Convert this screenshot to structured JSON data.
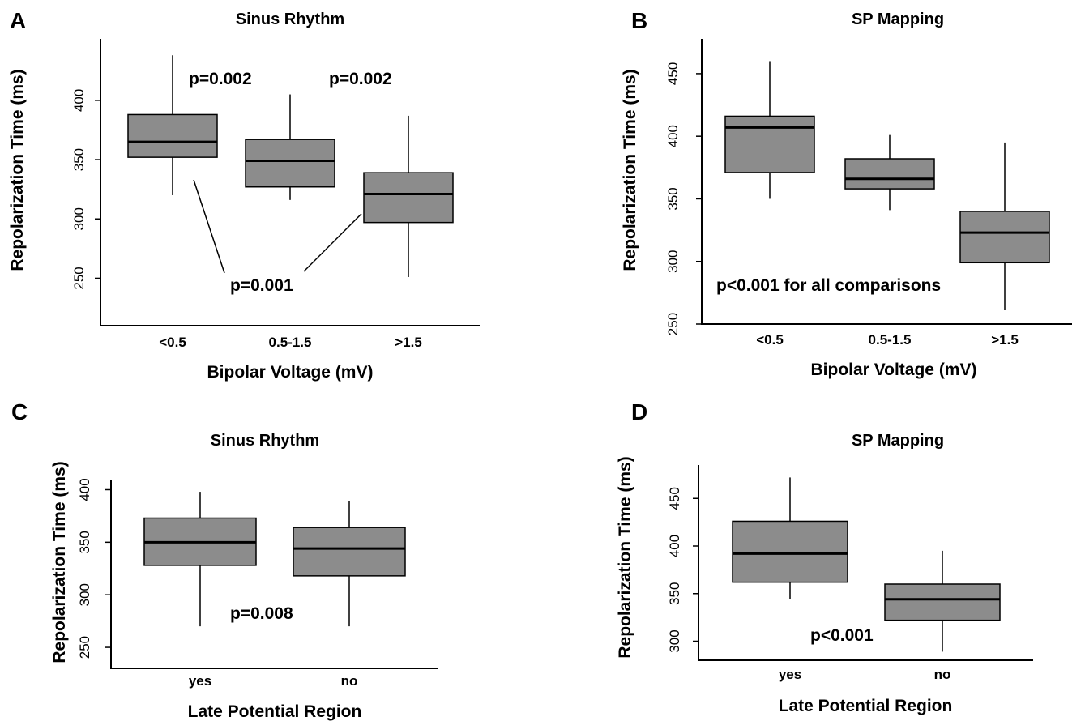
{
  "chart_data": [
    {
      "panel": "A",
      "type": "box",
      "title": "Sinus Rhythm",
      "xlabel": "Bipolar Voltage (mV)",
      "ylabel": "Repolarization Time (ms)",
      "yticks": [
        250,
        300,
        350,
        400
      ],
      "ylim": [
        210,
        445
      ],
      "categories": [
        "<0.5",
        "0.5-1.5",
        ">1.5"
      ],
      "boxes": [
        {
          "whisker_low": 320,
          "q1": 352,
          "median": 365,
          "q3": 388,
          "whisker_high": 438
        },
        {
          "whisker_low": 316,
          "q1": 327,
          "median": 349,
          "q3": 367,
          "whisker_high": 405
        },
        {
          "whisker_low": 251,
          "q1": 297,
          "median": 321,
          "q3": 339,
          "whisker_high": 387
        }
      ],
      "annotations": [
        "p=0.002",
        "p=0.002",
        "p=0.001"
      ]
    },
    {
      "panel": "B",
      "type": "box",
      "title": "SP Mapping",
      "xlabel": "Bipolar Voltage (mV)",
      "ylabel": "Repolarization Time (ms)",
      "yticks": [
        250,
        300,
        350,
        400,
        450
      ],
      "ylim": [
        250,
        470
      ],
      "categories": [
        "<0.5",
        "0.5-1.5",
        ">1.5"
      ],
      "boxes": [
        {
          "whisker_low": 350,
          "q1": 371,
          "median": 407,
          "q3": 416,
          "whisker_high": 460
        },
        {
          "whisker_low": 341,
          "q1": 358,
          "median": 366,
          "q3": 382,
          "whisker_high": 401
        },
        {
          "whisker_low": 261,
          "q1": 299,
          "median": 323,
          "q3": 340,
          "whisker_high": 395
        }
      ],
      "annotations": [
        "p<0.001 for all comparisons"
      ]
    },
    {
      "panel": "C",
      "type": "box",
      "title": "Sinus Rhythm",
      "xlabel": "Late Potential Region",
      "ylabel": "Repolarization Time (ms)",
      "yticks": [
        250,
        300,
        350,
        400
      ],
      "ylim": [
        230,
        405
      ],
      "categories": [
        "yes",
        "no"
      ],
      "boxes": [
        {
          "whisker_low": 270,
          "q1": 328,
          "median": 350,
          "q3": 373,
          "whisker_high": 398
        },
        {
          "whisker_low": 270,
          "q1": 318,
          "median": 344,
          "q3": 364,
          "whisker_high": 389
        }
      ],
      "annotations": [
        "p=0.008"
      ]
    },
    {
      "panel": "D",
      "type": "box",
      "title": "SP Mapping",
      "xlabel": "Late Potential Region",
      "ylabel": "Repolarization Time (ms)",
      "yticks": [
        300,
        350,
        400,
        450
      ],
      "ylim": [
        280,
        480
      ],
      "categories": [
        "yes",
        "no"
      ],
      "boxes": [
        {
          "whisker_low": 344,
          "q1": 362,
          "median": 392,
          "q3": 426,
          "whisker_high": 472
        },
        {
          "whisker_low": 289,
          "q1": 322,
          "median": 344,
          "q3": 360,
          "whisker_high": 395
        }
      ],
      "annotations": [
        "p<0.001"
      ]
    }
  ]
}
